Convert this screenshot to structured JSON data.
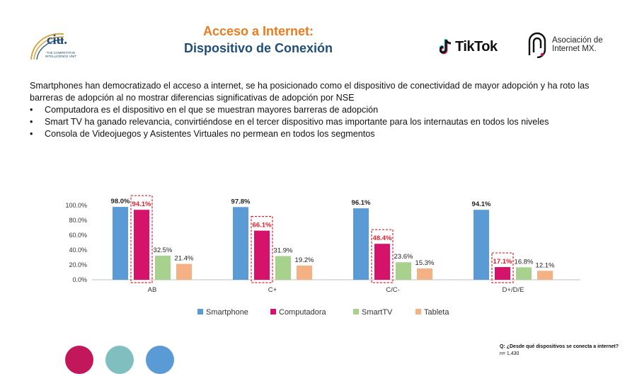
{
  "header": {
    "title_line1": "Acceso a Internet:",
    "title_line2": "Dispositivo de Conexión"
  },
  "logos": {
    "ciu": {
      "name": "ciu.",
      "sub": "THE COMPETITIVE INTELLIGENCE UNIT"
    },
    "tiktok": {
      "name": "TikTok"
    },
    "aimx": {
      "line1": "Asociación de",
      "line2": "Internet MX."
    }
  },
  "intro": {
    "paragraph": "Smartphones han democratizado el acceso a internet, se ha posicionado como el dispositivo de conectividad de mayor adopción y ha roto las barreras de adopción al no mostrar diferencias significativas de adopción por NSE",
    "bullets": [
      "Computadora es el dispositivo en el que se muestran mayores barreras de adopción",
      "Smart TV ha ganado relevancia, convirtiéndose en el tercer dispositivo mas importante para los internautas en todos los niveles",
      "Consola de Videojuegos y Asistentes Virtuales no permean en todos los segmentos"
    ]
  },
  "chart_data": {
    "type": "bar",
    "categories": [
      "AB",
      "C+",
      "C/C-",
      "D+/D/E"
    ],
    "series": [
      {
        "name": "Smartphone",
        "color": "#5b9bd5",
        "values": [
          98.0,
          97.8,
          96.1,
          94.1
        ],
        "labels": [
          "98.0%",
          "97.8%",
          "96.1%",
          "94.1%"
        ]
      },
      {
        "name": "Computadora",
        "color": "#d6136b",
        "values": [
          94.1,
          66.1,
          48.4,
          17.1
        ],
        "labels": [
          "94.1%",
          "66.1%",
          "48.4%",
          "17.1%"
        ],
        "highlighted": true,
        "label_color": "#e0202f"
      },
      {
        "name": "SmartTV",
        "color": "#a9d18e",
        "values": [
          32.5,
          31.9,
          23.6,
          16.8
        ],
        "labels": [
          "32.5%",
          "31.9%",
          "23.6%",
          "16.8%"
        ]
      },
      {
        "name": "Tableta",
        "color": "#f4b183",
        "values": [
          21.4,
          19.2,
          15.3,
          12.1
        ],
        "labels": [
          "21.4%",
          "19.2%",
          "15.3%",
          "12.1%"
        ]
      }
    ],
    "yticks": [
      "0.0%",
      "20.0%",
      "40.0%",
      "60.0%",
      "80.0%",
      "100.0%"
    ],
    "ylim": [
      0,
      100
    ],
    "grid": false,
    "legend": "bottom"
  },
  "source": {
    "question": "Q: ¿Desde qué dispositivos se conecta a internet?",
    "n": "n= 1,430"
  },
  "decor": {
    "circle_colors": [
      "#c2185b",
      "#7fbfbf",
      "#5b9bd5"
    ]
  }
}
